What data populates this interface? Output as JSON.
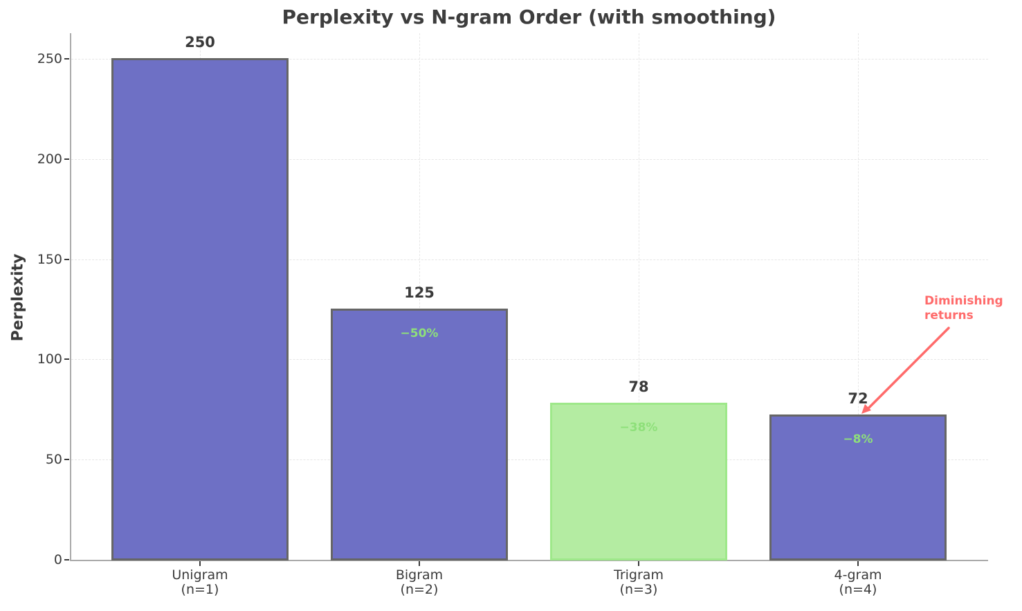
{
  "chart_data": {
    "type": "bar",
    "title": "Perplexity vs N-gram Order (with smoothing)",
    "xlabel": "",
    "ylabel": "Perplexity",
    "categories": [
      "Unigram\n(n=1)",
      "Bigram\n(n=2)",
      "Trigram\n(n=3)",
      "4-gram\n(n=4)"
    ],
    "category_lines": [
      [
        "Unigram",
        "(n=1)"
      ],
      [
        "Bigram",
        "(n=2)"
      ],
      [
        "Trigram",
        "(n=3)"
      ],
      [
        "4-gram",
        "(n=4)"
      ]
    ],
    "values": [
      250,
      125,
      78,
      72
    ],
    "value_labels": [
      "250",
      "125",
      "78",
      "72"
    ],
    "reduction_labels": [
      "",
      "−50%",
      "−38%",
      "−8%"
    ],
    "highlighted_index": 2,
    "ylim": [
      0,
      262
    ],
    "yticks": [
      0,
      50,
      100,
      150,
      200,
      250
    ],
    "grid": true,
    "legend": null,
    "annotations": [
      {
        "text": "Diminishing\nreturns",
        "lines": [
          "Diminishing",
          "returns"
        ],
        "points_to": "4-gram (72)"
      }
    ],
    "colors": {
      "bar": "#6e70c5",
      "bar_edge": "#666666",
      "highlight_bar": "#b4eca2",
      "highlight_edge": "#9ee88a",
      "reduction_text": "#8ee07a",
      "annotation": "#ff6b6b",
      "text": "#3a3a3a"
    }
  }
}
